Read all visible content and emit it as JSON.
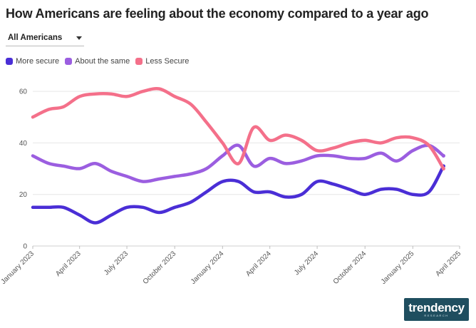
{
  "header": {
    "title": "How Americans are feeling about the economy compared to a year ago"
  },
  "filter": {
    "selected": "All Americans"
  },
  "logo": {
    "main": "trendency",
    "sub": "RESEARCH"
  },
  "colors": {
    "more_secure": "#4a2ed6",
    "about_same": "#9b5ee0",
    "less_secure": "#f4708a",
    "grid": "#e6e6e6"
  },
  "chart_data": {
    "type": "line",
    "title": "How Americans are feeling about the economy compared to a year ago",
    "xlabel": "",
    "ylabel": "",
    "ylim": [
      0,
      65
    ],
    "xlim": [
      "2023-01-01",
      "2025-04-01"
    ],
    "yticks": [
      0,
      20,
      40,
      60
    ],
    "xticks": [
      "January 2023",
      "April 2023",
      "July 2023",
      "October 2023",
      "January 2024",
      "April 2024",
      "July 2024",
      "October 2024",
      "January 2025",
      "April 2025"
    ],
    "grid": "horizontal",
    "legend": "top-left",
    "series": [
      {
        "name": "More secure",
        "points": [
          [
            "2023-01-01",
            15
          ],
          [
            "2023-02-01",
            15
          ],
          [
            "2023-03-01",
            15
          ],
          [
            "2023-04-01",
            12
          ],
          [
            "2023-05-01",
            9
          ],
          [
            "2023-06-01",
            12
          ],
          [
            "2023-07-01",
            15
          ],
          [
            "2023-08-01",
            15
          ],
          [
            "2023-09-01",
            13
          ],
          [
            "2023-10-01",
            15
          ],
          [
            "2023-11-01",
            17
          ],
          [
            "2023-12-01",
            21
          ],
          [
            "2024-01-01",
            25
          ],
          [
            "2024-02-01",
            25
          ],
          [
            "2024-03-01",
            21
          ],
          [
            "2024-04-01",
            21
          ],
          [
            "2024-05-01",
            19
          ],
          [
            "2024-06-01",
            20
          ],
          [
            "2024-07-01",
            25
          ],
          [
            "2024-08-01",
            24
          ],
          [
            "2024-09-01",
            22
          ],
          [
            "2024-10-01",
            20
          ],
          [
            "2024-11-01",
            22
          ],
          [
            "2024-12-01",
            22
          ],
          [
            "2025-01-01",
            20
          ],
          [
            "2025-02-01",
            21
          ],
          [
            "2025-03-01",
            31
          ]
        ]
      },
      {
        "name": "About the same",
        "points": [
          [
            "2023-01-01",
            35
          ],
          [
            "2023-02-01",
            32
          ],
          [
            "2023-03-01",
            31
          ],
          [
            "2023-04-01",
            30
          ],
          [
            "2023-05-01",
            32
          ],
          [
            "2023-06-01",
            29
          ],
          [
            "2023-07-01",
            27
          ],
          [
            "2023-08-01",
            25
          ],
          [
            "2023-09-01",
            26
          ],
          [
            "2023-10-01",
            27
          ],
          [
            "2023-11-01",
            28
          ],
          [
            "2023-12-01",
            30
          ],
          [
            "2024-01-01",
            35
          ],
          [
            "2024-02-01",
            39
          ],
          [
            "2024-03-01",
            31
          ],
          [
            "2024-04-01",
            34
          ],
          [
            "2024-05-01",
            32
          ],
          [
            "2024-06-01",
            33
          ],
          [
            "2024-07-01",
            35
          ],
          [
            "2024-08-01",
            35
          ],
          [
            "2024-09-01",
            34
          ],
          [
            "2024-10-01",
            34
          ],
          [
            "2024-11-01",
            36
          ],
          [
            "2024-12-01",
            33
          ],
          [
            "2025-01-01",
            37
          ],
          [
            "2025-02-01",
            39
          ],
          [
            "2025-03-01",
            35
          ]
        ]
      },
      {
        "name": "Less Secure",
        "points": [
          [
            "2023-01-01",
            50
          ],
          [
            "2023-02-01",
            53
          ],
          [
            "2023-03-01",
            54
          ],
          [
            "2023-04-01",
            58
          ],
          [
            "2023-05-01",
            59
          ],
          [
            "2023-06-01",
            59
          ],
          [
            "2023-07-01",
            58
          ],
          [
            "2023-08-01",
            60
          ],
          [
            "2023-09-01",
            61
          ],
          [
            "2023-10-01",
            58
          ],
          [
            "2023-11-01",
            55
          ],
          [
            "2023-12-01",
            48
          ],
          [
            "2024-01-01",
            40
          ],
          [
            "2024-02-01",
            32
          ],
          [
            "2024-03-01",
            46
          ],
          [
            "2024-04-01",
            41
          ],
          [
            "2024-05-01",
            43
          ],
          [
            "2024-06-01",
            41
          ],
          [
            "2024-07-01",
            37
          ],
          [
            "2024-08-01",
            38
          ],
          [
            "2024-09-01",
            40
          ],
          [
            "2024-10-01",
            41
          ],
          [
            "2024-11-01",
            40
          ],
          [
            "2024-12-01",
            42
          ],
          [
            "2025-01-01",
            42
          ],
          [
            "2025-02-01",
            39
          ],
          [
            "2025-03-01",
            30
          ]
        ]
      }
    ]
  }
}
